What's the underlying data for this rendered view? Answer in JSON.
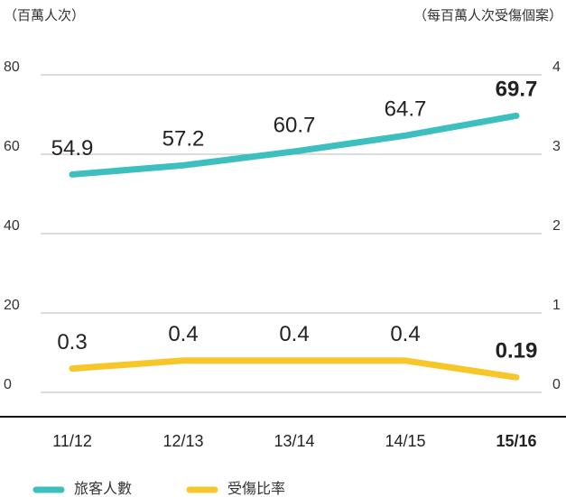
{
  "chart_data": {
    "type": "line",
    "y_label": "（百萬人次）",
    "y2_label": "（每百萬人次受傷個案）",
    "categories": [
      "11/12",
      "12/13",
      "13/14",
      "14/15",
      "15/16"
    ],
    "series": [
      {
        "name": "旅客人數",
        "color": "#3dbfbf",
        "values": [
          54.9,
          57.2,
          60.7,
          64.7,
          69.7
        ]
      },
      {
        "name": "受傷比率",
        "color": "#f7c72a",
        "axis": "y2",
        "values": [
          0.3,
          0.4,
          0.4,
          0.4,
          0.19
        ]
      }
    ],
    "ylim": [
      0,
      80
    ],
    "yticks": [
      0,
      20,
      40,
      60,
      80
    ],
    "y2lim": [
      0,
      4
    ],
    "y2ticks": [
      0,
      1,
      2,
      3,
      4
    ],
    "grid": true
  }
}
